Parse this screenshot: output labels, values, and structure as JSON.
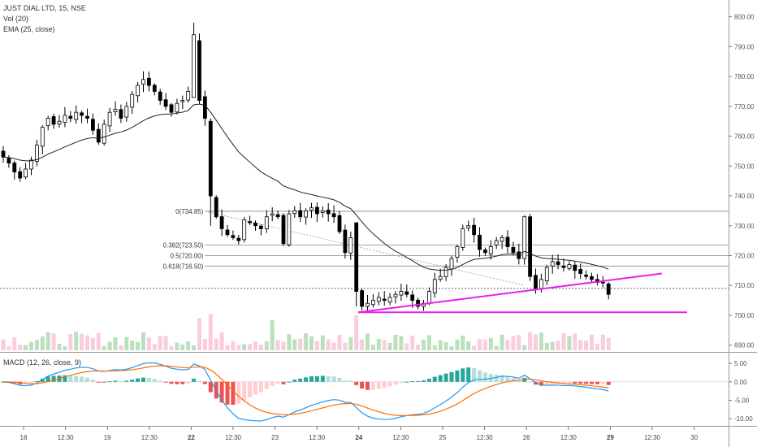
{
  "header": {
    "symbol_line": "JUST DIAL LTD, 15, NSE",
    "vol_line": "Vol (20)",
    "ema_line": "EMA (25, close)"
  },
  "macd": {
    "label": "MACD (12, 26, close, 9)"
  },
  "price_axis": {
    "ticks": [
      "800.00",
      "790.00",
      "780.00",
      "770.00",
      "760.00",
      "750.00",
      "740.00",
      "730.00",
      "720.00",
      "710.00",
      "700.00",
      "690.00"
    ],
    "values": [
      800,
      790,
      780,
      770,
      760,
      750,
      740,
      730,
      720,
      710,
      700,
      690
    ]
  },
  "macd_axis": {
    "ticks": [
      "5.00",
      "0.00",
      "-5.00",
      "-10.00"
    ],
    "values": [
      5,
      0,
      -5,
      -10
    ]
  },
  "time_axis": {
    "labels": [
      "18",
      "12:30",
      "19",
      "12:30",
      "22",
      "12:30",
      "23",
      "12:30",
      "24",
      "12:30",
      "25",
      "12:30",
      "26",
      "12:30",
      "29",
      "12:30",
      "30"
    ],
    "bold": [
      false,
      false,
      false,
      false,
      true,
      false,
      false,
      false,
      true,
      false,
      false,
      false,
      false,
      false,
      true,
      false,
      false
    ]
  },
  "fib_levels": [
    {
      "label": "0(734.85)",
      "value": 734.85
    },
    {
      "label": "0.382(723.50)",
      "value": 723.5
    },
    {
      "label": "0.5(720.00)",
      "value": 720.0
    },
    {
      "label": "0.618(716.50)",
      "value": 716.5
    }
  ],
  "colors": {
    "up": "#ffffff",
    "down": "#000000",
    "ema": "#222222",
    "trendline": "#e91ee9",
    "macd_line": "#2196f3",
    "signal_line": "#ff6d00",
    "vol_up": "#a5d6a7",
    "vol_down": "#f8bbd0",
    "hist_up_strong": "#26a69a",
    "hist_up_weak": "#b2dfdb",
    "hist_down_strong": "#ef5350",
    "hist_down_weak": "#ffcdd2"
  },
  "chart_data": {
    "type": "candlestick",
    "symbol": "JUST DIAL LTD",
    "interval": "15",
    "exchange": "NSE",
    "y_range": [
      688,
      804
    ],
    "candles_close": [
      753,
      751,
      748,
      746,
      749,
      752,
      757,
      763,
      766,
      764,
      765,
      767,
      766,
      768,
      767,
      766,
      762,
      758,
      764,
      768,
      769,
      766,
      770,
      774,
      777,
      779,
      777,
      775,
      772,
      770,
      768,
      771,
      772,
      775,
      794,
      773,
      766,
      740,
      733,
      729,
      727,
      726,
      725,
      732,
      731,
      730,
      729,
      733,
      734,
      733,
      724,
      734,
      735,
      733,
      735,
      736,
      734,
      735,
      734,
      733,
      728,
      721,
      726,
      708,
      703,
      704,
      705,
      706,
      705,
      706,
      707,
      708,
      707,
      705,
      703,
      704,
      708,
      712,
      713,
      716,
      719,
      723,
      729,
      730,
      727,
      722,
      721,
      723,
      725,
      726,
      723,
      721,
      719,
      733,
      713,
      709,
      712,
      716,
      718,
      717,
      716,
      717,
      715,
      714,
      713,
      712,
      711,
      711,
      707
    ],
    "ema_period": 25,
    "trendlines": [
      {
        "from": [
          "24",
          701
        ],
        "to": [
          "29+",
          714
        ]
      },
      {
        "from": [
          "24",
          701
        ],
        "to": [
          "30",
          701
        ]
      }
    ],
    "fib_levels": [
      734.85,
      723.5,
      720.0,
      716.5
    ],
    "last_price_line": 709,
    "macd_range": [
      -11.5,
      7
    ],
    "series_labels": [
      "Vol (20)",
      "EMA (25, close)",
      "MACD (12, 26, close, 9)"
    ]
  }
}
